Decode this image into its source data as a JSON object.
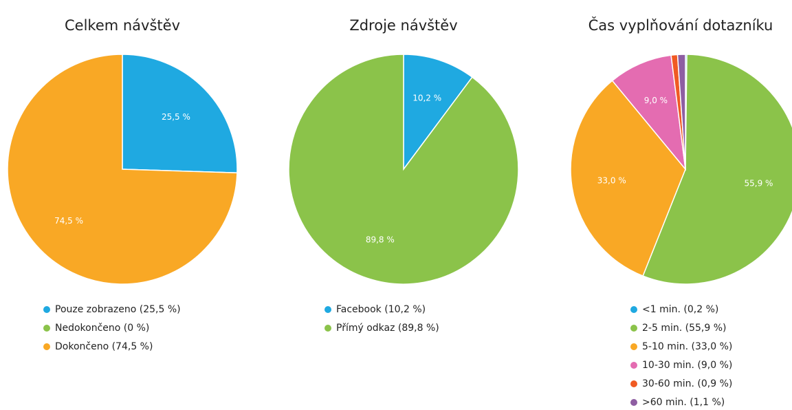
{
  "chart_data": [
    {
      "type": "pie",
      "title": "Celkem návštěv",
      "categories": [
        "Pouze zobrazeno (25,5 %)",
        "Nedokončeno (0 %)",
        "Dokončeno (74,5 %)"
      ],
      "values": [
        25.5,
        0,
        74.5
      ],
      "value_labels": [
        "25,5 %",
        null,
        "74,5 %"
      ],
      "colors": [
        "#1fa9e1",
        "#8bc34a",
        "#f9a825"
      ]
    },
    {
      "type": "pie",
      "title": "Zdroje návštěv",
      "categories": [
        "Facebook (10,2 %)",
        "Přímý odkaz (89,8 %)"
      ],
      "values": [
        10.2,
        89.8
      ],
      "value_labels": [
        "10,2 %",
        "89,8 %"
      ],
      "colors": [
        "#1fa9e1",
        "#8bc34a"
      ]
    },
    {
      "type": "pie",
      "title": "Čas vyplňování dotazníku",
      "categories": [
        "<1 min. (0,2 %)",
        "2-5 min. (55,9 %)",
        "5-10 min. (33,0 %)",
        "10-30 min. (9,0 %)",
        "30-60 min. (0,9 %)",
        ">60 min. (1,1 %)"
      ],
      "values": [
        0.2,
        55.9,
        33.0,
        9.0,
        0.9,
        1.1
      ],
      "value_labels": [
        null,
        "55,9 %",
        "33,0 %",
        "9,0 %",
        null,
        null
      ],
      "colors": [
        "#1fa9e1",
        "#8bc34a",
        "#f9a825",
        "#e46cb1",
        "#f05a23",
        "#8e5ea2"
      ]
    }
  ]
}
